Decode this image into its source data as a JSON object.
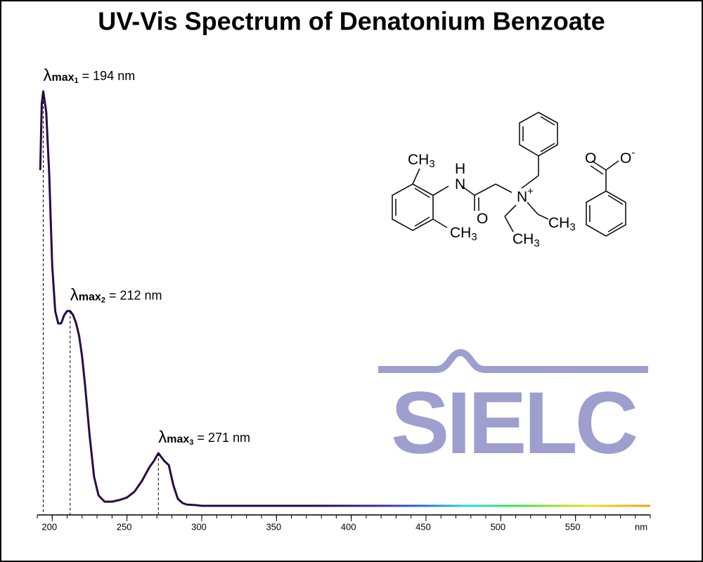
{
  "chart_data": {
    "type": "line",
    "title": "UV-Vis Spectrum of Denatonium Benzoate",
    "xlabel": "nm",
    "x": [
      192,
      193,
      194,
      196,
      198,
      200,
      202,
      204,
      206,
      208,
      210,
      212,
      214,
      216,
      218,
      220,
      222,
      225,
      228,
      231,
      235,
      240,
      245,
      250,
      255,
      260,
      265,
      268,
      271,
      275,
      278,
      281,
      284,
      287,
      290,
      295,
      300,
      350,
      400,
      450,
      500,
      550,
      600
    ],
    "values": [
      0.81,
      0.97,
      1.0,
      0.95,
      0.8,
      0.58,
      0.47,
      0.44,
      0.44,
      0.46,
      0.47,
      0.47,
      0.46,
      0.44,
      0.41,
      0.36,
      0.29,
      0.17,
      0.07,
      0.025,
      0.01,
      0.01,
      0.014,
      0.02,
      0.034,
      0.06,
      0.093,
      0.108,
      0.127,
      0.108,
      0.098,
      0.05,
      0.017,
      0.007,
      0.003,
      0.002,
      0,
      0,
      0,
      0,
      0,
      0,
      0
    ],
    "color": "#2a0a45",
    "xlim": [
      190,
      600
    ],
    "ylim": [
      0,
      1
    ],
    "xticks": [
      200,
      250,
      300,
      350,
      400,
      450,
      500,
      550
    ],
    "xminor_step": 10,
    "annotations": [
      {
        "symbol": "λ",
        "label": "max",
        "subscript": "1",
        "text": "= 194 nm",
        "x": 194
      },
      {
        "symbol": "λ",
        "label": "max",
        "subscript": "2",
        "text": "= 212 nm",
        "x": 212
      },
      {
        "symbol": "λ",
        "label": "max",
        "subscript": "3",
        "text": "= 271 nm",
        "x": 271
      }
    ],
    "structure_labels": [
      {
        "text": "CH",
        "sub": "3"
      },
      {
        "text": "H"
      },
      {
        "text": "N"
      },
      {
        "text": "O"
      },
      {
        "text": "N",
        "sup": "+"
      },
      {
        "text": "CH",
        "sub": "3"
      },
      {
        "text": "CH",
        "sub": "3"
      },
      {
        "text": "CH",
        "sub": "3"
      },
      {
        "text": "O"
      },
      {
        "text": "O",
        "sup": "-"
      }
    ],
    "logo": "SIELC"
  }
}
